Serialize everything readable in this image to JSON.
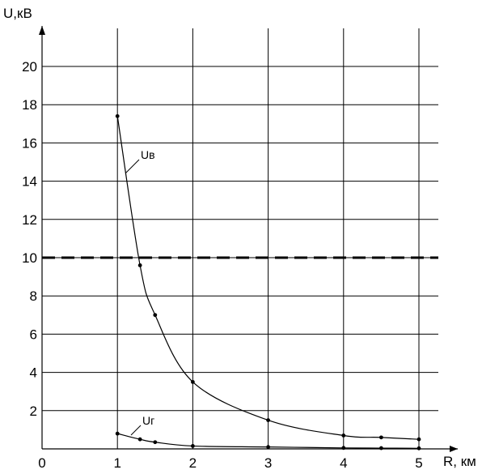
{
  "chart_data": {
    "type": "line",
    "title": "",
    "ylabel": "U,кВ",
    "xlabel": "R, км",
    "xlim": [
      0,
      5.35
    ],
    "ylim": [
      0,
      22
    ],
    "x_ticks": [
      0,
      1,
      2,
      3,
      4,
      5
    ],
    "y_ticks": [
      2,
      4,
      6,
      8,
      10,
      12,
      14,
      16,
      18,
      20
    ],
    "grid": true,
    "reference_line": {
      "y": 10,
      "style": "dashed"
    },
    "series": [
      {
        "name": "Uв",
        "x": [
          1.0,
          1.3,
          1.5,
          2.0,
          3.0,
          4.0,
          4.5,
          5.0
        ],
        "y": [
          17.4,
          9.6,
          7.0,
          3.5,
          1.5,
          0.7,
          0.6,
          0.5
        ]
      },
      {
        "name": "Uг",
        "x": [
          1.0,
          1.3,
          1.5,
          2.0,
          3.0,
          4.0,
          4.5,
          5.0
        ],
        "y": [
          0.8,
          0.5,
          0.35,
          0.15,
          0.1,
          0.05,
          0.04,
          0.03
        ]
      }
    ]
  }
}
